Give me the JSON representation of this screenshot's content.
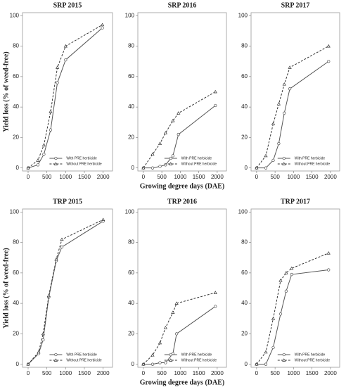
{
  "chart_data": [
    {
      "type": "line",
      "title": "SRP 2015",
      "ylabel": "Yield loss (% of weed-free)",
      "x": [
        0,
        260,
        420,
        600,
        780,
        1000,
        1980
      ],
      "series": [
        {
          "name": "With PRE herbicide",
          "color": "#555555",
          "dash": false,
          "marker": "circle",
          "values": [
            0,
            2,
            9,
            25,
            56,
            71,
            92
          ]
        },
        {
          "name": "Without PRE herbicide",
          "color": "#333333",
          "dash": true,
          "marker": "triangle",
          "values": [
            0,
            5,
            15,
            37,
            66,
            80,
            94
          ]
        }
      ],
      "xlim": [
        -150,
        2250
      ],
      "xticks": [
        0,
        500,
        1000,
        1500,
        2000
      ],
      "ylim": [
        -2,
        102
      ],
      "yticks": [
        0,
        20,
        40,
        60,
        80,
        100
      ]
    },
    {
      "type": "line",
      "title": "SRP 2016",
      "xlabel": "Growing degree days (DAE)",
      "x": [
        0,
        250,
        450,
        600,
        800,
        950,
        1950
      ],
      "series": [
        {
          "name": "With PRE herbicide",
          "color": "#555555",
          "dash": false,
          "marker": "circle",
          "values": [
            0,
            0,
            1,
            2,
            8,
            22,
            41
          ]
        },
        {
          "name": "Without PRE herbicide",
          "color": "#333333",
          "dash": true,
          "marker": "triangle",
          "values": [
            0,
            9,
            16,
            23,
            31,
            36,
            50
          ]
        }
      ],
      "xlim": [
        -150,
        2250
      ],
      "xticks": [
        0,
        500,
        1000,
        1500,
        2000
      ],
      "ylim": [
        -2,
        102
      ],
      "yticks": [
        0,
        20,
        40,
        60,
        80,
        100
      ]
    },
    {
      "type": "line",
      "title": "SRP 2017",
      "x": [
        0,
        250,
        450,
        600,
        750,
        900,
        1950
      ],
      "series": [
        {
          "name": "With PRE herbicide",
          "color": "#555555",
          "dash": false,
          "marker": "circle",
          "values": [
            0,
            0,
            5,
            16,
            36,
            52,
            70
          ]
        },
        {
          "name": "Without PRE herbicide",
          "color": "#333333",
          "dash": true,
          "marker": "triangle",
          "values": [
            0,
            8,
            29,
            42,
            55,
            66,
            80
          ]
        }
      ],
      "xlim": [
        -150,
        2250
      ],
      "xticks": [
        0,
        500,
        1000,
        1500,
        2000
      ],
      "ylim": [
        -2,
        102
      ],
      "yticks": [
        0,
        20,
        40,
        60,
        80,
        100
      ]
    },
    {
      "type": "line",
      "title": "TRP 2015",
      "ylabel": "Yield loss (% of weed-free)",
      "x": [
        0,
        280,
        400,
        550,
        750,
        900,
        2000
      ],
      "series": [
        {
          "name": "With PRE herbicide",
          "color": "#555555",
          "dash": false,
          "marker": "circle",
          "values": [
            0,
            7,
            16,
            44,
            68,
            77,
            94
          ]
        },
        {
          "name": "Without PRE herbicide",
          "color": "#333333",
          "dash": true,
          "marker": "triangle",
          "values": [
            0,
            8,
            20,
            45,
            69,
            82,
            95
          ]
        }
      ],
      "xlim": [
        -150,
        2250
      ],
      "xticks": [
        0,
        500,
        1000,
        1500,
        2000
      ],
      "ylim": [
        -2,
        102
      ],
      "yticks": [
        0,
        20,
        40,
        60,
        80,
        100
      ]
    },
    {
      "type": "line",
      "title": "TRP 2016",
      "xlabel": "Growing degree days (DAE)",
      "x": [
        0,
        250,
        450,
        600,
        800,
        900,
        1950
      ],
      "series": [
        {
          "name": "With PRE herbicide",
          "color": "#555555",
          "dash": false,
          "marker": "circle",
          "values": [
            0,
            0,
            1,
            1,
            7,
            20,
            38
          ]
        },
        {
          "name": "Without PRE herbicide",
          "color": "#333333",
          "dash": true,
          "marker": "triangle",
          "values": [
            0,
            6,
            14,
            24,
            34,
            40,
            47
          ]
        }
      ],
      "xlim": [
        -150,
        2250
      ],
      "xticks": [
        0,
        500,
        1000,
        1500,
        2000
      ],
      "ylim": [
        -2,
        102
      ],
      "yticks": [
        0,
        20,
        40,
        60,
        80,
        100
      ]
    },
    {
      "type": "line",
      "title": "TRP 2017",
      "x": [
        0,
        250,
        450,
        650,
        800,
        950,
        1950
      ],
      "series": [
        {
          "name": "With PRE herbicide",
          "color": "#555555",
          "dash": false,
          "marker": "circle",
          "values": [
            0,
            0,
            11,
            33,
            48,
            59,
            62
          ]
        },
        {
          "name": "Without PRE herbicide",
          "color": "#333333",
          "dash": true,
          "marker": "triangle",
          "values": [
            0,
            8,
            30,
            55,
            60,
            63,
            73
          ]
        }
      ],
      "xlim": [
        -150,
        2250
      ],
      "xticks": [
        0,
        500,
        1000,
        1500,
        2000
      ],
      "ylim": [
        -2,
        102
      ],
      "yticks": [
        0,
        20,
        40,
        60,
        80,
        100
      ]
    }
  ]
}
